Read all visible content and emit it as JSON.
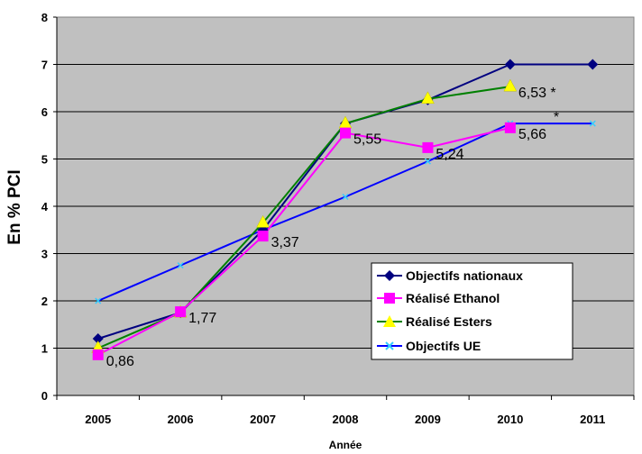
{
  "chart_data": {
    "type": "line",
    "xlabel": "Année",
    "ylabel": "En % PCI",
    "categories": [
      "2005",
      "2006",
      "2007",
      "2008",
      "2009",
      "2010",
      "2011"
    ],
    "ylim": [
      0,
      8
    ],
    "yticks": [
      0,
      1,
      2,
      3,
      4,
      5,
      6,
      7,
      8
    ],
    "grid": true,
    "legend_position": "bottom-right",
    "plot_background": "#c0c0c0",
    "series": [
      {
        "name": "Objectifs nationaux",
        "values": [
          1.2,
          1.75,
          3.5,
          5.75,
          6.25,
          7.0,
          7.0
        ],
        "color": "#000080",
        "marker": "diamond"
      },
      {
        "name": "Réalisé Ethanol",
        "values": [
          0.86,
          1.77,
          3.37,
          5.55,
          5.24,
          5.66,
          null
        ],
        "color": "#ff00ff",
        "marker": "square"
      },
      {
        "name": "Réalisé Esters",
        "values": [
          1.0,
          1.75,
          3.65,
          5.75,
          6.27,
          6.53,
          null
        ],
        "color": "#008000",
        "marker": "triangle",
        "marker_color": "#ffff00"
      },
      {
        "name": "Objectifs UE",
        "values": [
          2.0,
          2.75,
          3.5,
          4.2,
          4.95,
          5.75,
          5.75
        ],
        "color": "#0000ff",
        "marker": "x",
        "marker_color": "#33ccff"
      }
    ],
    "data_labels": [
      {
        "category": "2005",
        "value": 0.86,
        "text": "0,86"
      },
      {
        "category": "2006",
        "value": 1.77,
        "text": "1,77"
      },
      {
        "category": "2007",
        "value": 3.37,
        "text": "3,37"
      },
      {
        "category": "2008",
        "value": 5.55,
        "text": "5,55"
      },
      {
        "category": "2009",
        "value": 5.24,
        "text": "5,24"
      },
      {
        "category": "2010",
        "value": 5.66,
        "text": "5,66"
      },
      {
        "category": "2010",
        "value": 6.53,
        "text": "6,53 *"
      }
    ],
    "annotations": [
      {
        "category": "2010",
        "value": 5.75,
        "text": "*"
      }
    ]
  }
}
